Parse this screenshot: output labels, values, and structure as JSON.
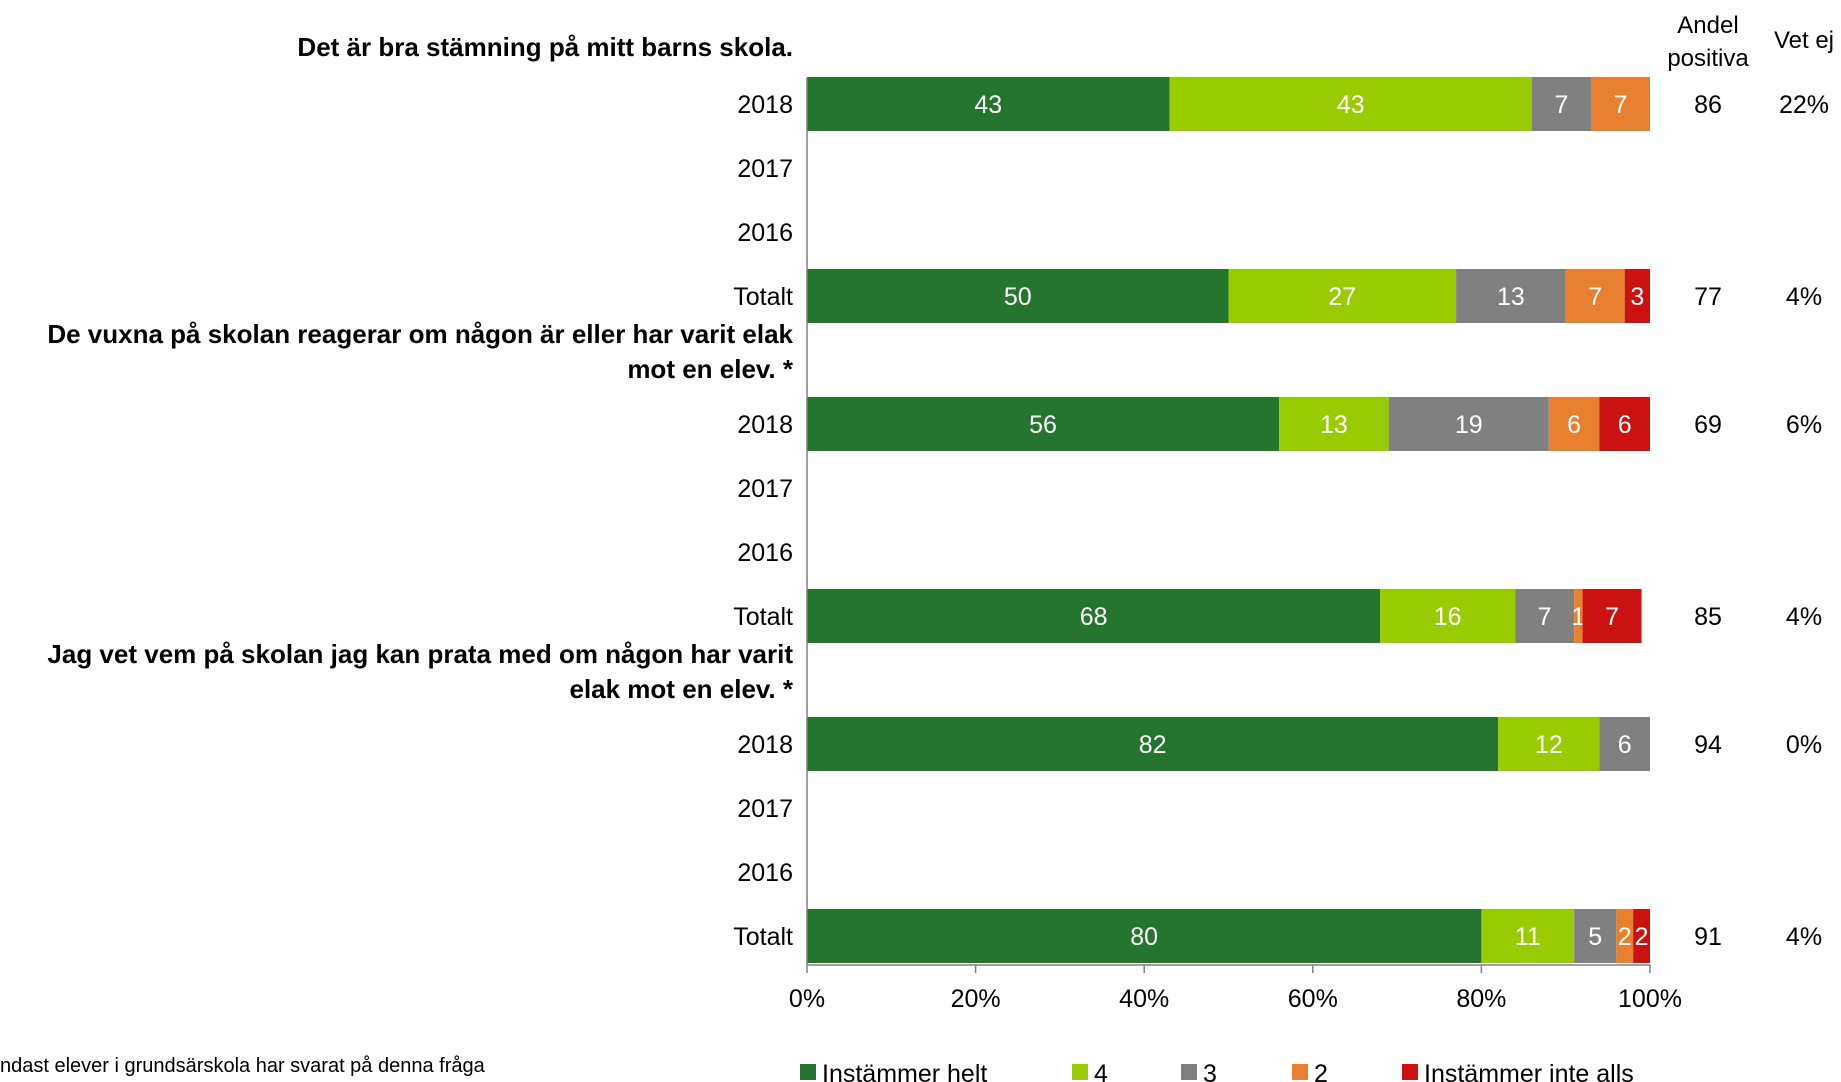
{
  "chart_data": {
    "type": "bar",
    "orientation": "horizontal",
    "stacked": true,
    "xlim": [
      0,
      100
    ],
    "x_ticks": [
      "0%",
      "20%",
      "40%",
      "60%",
      "80%",
      "100%"
    ],
    "legend_position": "bottom",
    "grid": false,
    "column_headers": {
      "andel_line1": "Andel",
      "andel_line2": "positiva",
      "vetej": "Vet ej"
    },
    "series": [
      {
        "name": "Instämmer helt",
        "color": "#25752E"
      },
      {
        "name": "4",
        "color": "#99CC00"
      },
      {
        "name": "3",
        "color": "#808080"
      },
      {
        "name": "2",
        "color": "#E8802F"
      },
      {
        "name": "Instämmer inte alls",
        "color": "#CC1111"
      }
    ],
    "groups": [
      {
        "title_lines": [
          "Det är bra stämning på mitt barns skola."
        ],
        "rows": [
          {
            "label": "2018",
            "values": [
              43,
              43,
              7,
              7,
              0
            ],
            "labels": [
              "43",
              "43",
              "7",
              "7",
              ""
            ],
            "andel": "86",
            "vetej": "22%"
          },
          {
            "label": "2017",
            "values": [],
            "labels": [],
            "andel": "",
            "vetej": ""
          },
          {
            "label": "2016",
            "values": [],
            "labels": [],
            "andel": "",
            "vetej": ""
          },
          {
            "label": "Totalt",
            "values": [
              50,
              27,
              13,
              7,
              3
            ],
            "labels": [
              "50",
              "27",
              "13",
              "7",
              "3"
            ],
            "andel": "77",
            "vetej": "4%"
          }
        ]
      },
      {
        "title_lines": [
          "De vuxna på skolan reagerar om någon är eller har varit elak",
          "mot en elev. *"
        ],
        "rows": [
          {
            "label": "2018",
            "values": [
              56,
              13,
              19,
              6,
              6
            ],
            "labels": [
              "56",
              "13",
              "19",
              "6",
              "6"
            ],
            "andel": "69",
            "vetej": "6%"
          },
          {
            "label": "2017",
            "values": [],
            "labels": [],
            "andel": "",
            "vetej": ""
          },
          {
            "label": "2016",
            "values": [],
            "labels": [],
            "andel": "",
            "vetej": ""
          },
          {
            "label": "Totalt",
            "values": [
              68,
              16,
              7,
              1,
              7
            ],
            "labels": [
              "68",
              "16",
              "7",
              "1",
              "7"
            ],
            "andel": "85",
            "vetej": "4%"
          }
        ]
      },
      {
        "title_lines": [
          "Jag vet vem på skolan jag kan prata med om någon har varit",
          "elak mot en elev. *"
        ],
        "rows": [
          {
            "label": "2018",
            "values": [
              82,
              12,
              6,
              0,
              0
            ],
            "labels": [
              "82",
              "12",
              "6",
              "",
              ""
            ],
            "andel": "94",
            "vetej": "0%"
          },
          {
            "label": "2017",
            "values": [],
            "labels": [],
            "andel": "",
            "vetej": ""
          },
          {
            "label": "2016",
            "values": [],
            "labels": [],
            "andel": "",
            "vetej": ""
          },
          {
            "label": "Totalt",
            "values": [
              80,
              11,
              5,
              2,
              2
            ],
            "labels": [
              "80",
              "11",
              "5",
              "2",
              "2"
            ],
            "andel": "91",
            "vetej": "4%"
          }
        ]
      }
    ],
    "footnote": "ndast elever i grundsärskola har svarat på denna fråga"
  }
}
